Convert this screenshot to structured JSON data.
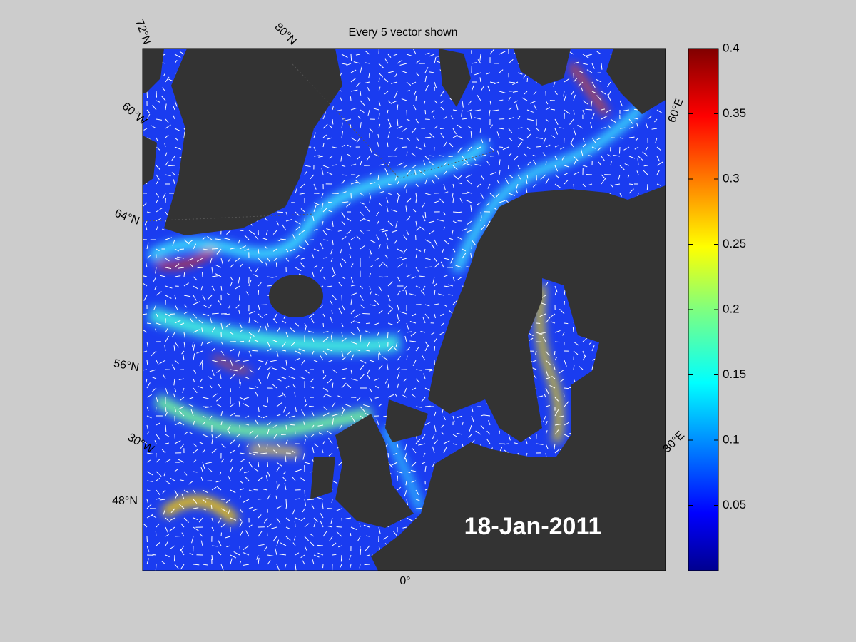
{
  "title": "Every 5 vector shown",
  "date_label": "18-Jan-2011",
  "graticule_labels": [
    "72°N",
    "80°N",
    "60°W",
    "64°N",
    "56°N",
    "30°W",
    "48°N",
    "0°",
    "30°E",
    "60°E"
  ],
  "colorbar": {
    "lim": [
      0,
      0.4
    ],
    "ticks": [
      0.05,
      0.1,
      0.15,
      0.2,
      0.25,
      0.3,
      0.35,
      0.4
    ]
  }
}
